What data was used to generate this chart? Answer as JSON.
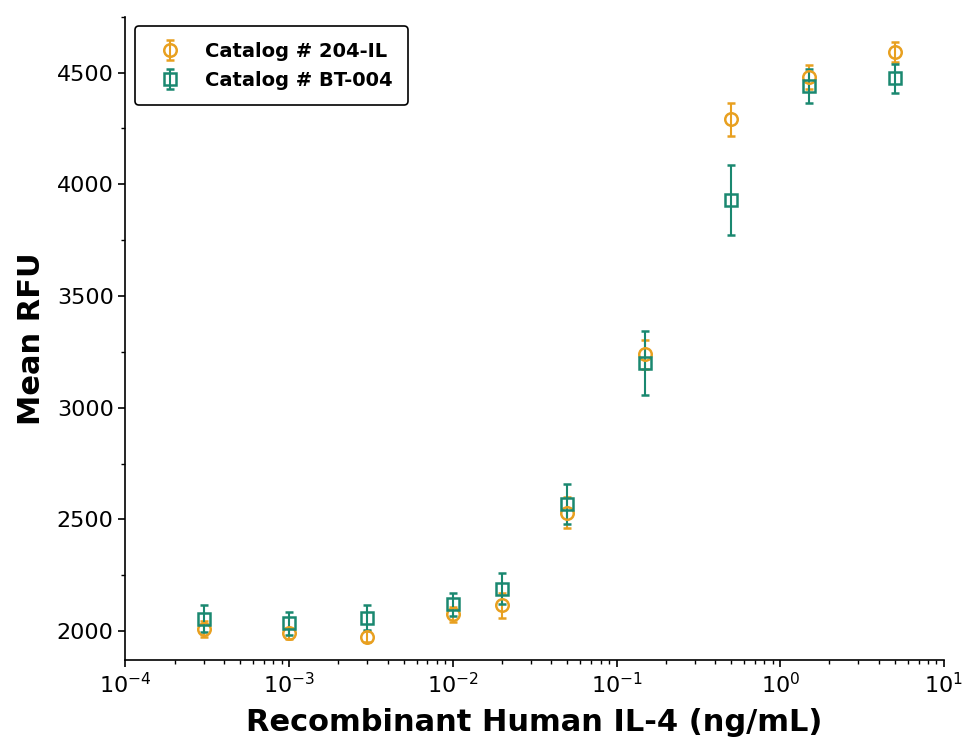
{
  "title": "",
  "xlabel": "Recombinant Human IL-4 (ng/mL)",
  "ylabel": "Mean RFU",
  "ylim": [
    1870,
    4750
  ],
  "yticks": [
    2000,
    2500,
    3000,
    3500,
    4000,
    4500
  ],
  "series1": {
    "label": "Catalog # 204-IL",
    "color": "#E8A020",
    "marker": "o",
    "x": [
      0.0003,
      0.001,
      0.003,
      0.01,
      0.02,
      0.05,
      0.15,
      0.5,
      1.5,
      5.0
    ],
    "y": [
      2010,
      1990,
      1975,
      2075,
      2115,
      2530,
      3240,
      4290,
      4480,
      4590
    ],
    "yerr": [
      35,
      25,
      25,
      35,
      55,
      70,
      65,
      75,
      55,
      45
    ]
  },
  "series2": {
    "label": "Catalog # BT-004",
    "color": "#1A8870",
    "marker": "s",
    "x": [
      0.0003,
      0.001,
      0.003,
      0.01,
      0.02,
      0.05,
      0.15,
      0.5,
      1.5,
      5.0
    ],
    "y": [
      2055,
      2035,
      2060,
      2120,
      2190,
      2570,
      3200,
      3930,
      4440,
      4475
    ],
    "yerr": [
      60,
      50,
      55,
      50,
      70,
      90,
      145,
      155,
      75,
      65
    ]
  },
  "background_color": "#ffffff",
  "legend_loc": "upper left",
  "legend_fontsize": 14,
  "xlabel_fontsize": 22,
  "ylabel_fontsize": 22,
  "tick_fontsize": 16,
  "marker_size": 9,
  "line_width": 2.0
}
